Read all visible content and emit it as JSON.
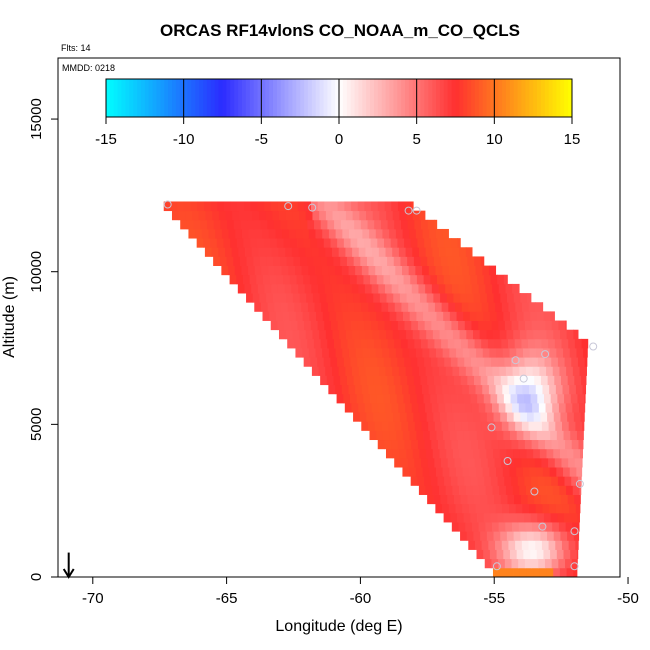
{
  "chart_data": {
    "type": "heatmap",
    "title": "ORCAS RF14vlonS CO_NOAA_m_CO_QCLS",
    "subtitle_flights": "Flts: 14",
    "subtitle_date": "MMDD: 0218",
    "xlabel": "Longitude (deg E)",
    "ylabel": "Altitude (m)",
    "xlim": [
      -71.3,
      -50.3
    ],
    "ylim": [
      0,
      17000
    ],
    "x_ticks": [
      -70,
      -65,
      -60,
      -55,
      -50
    ],
    "x_tick_labels": [
      "-70",
      "-65",
      "-60",
      "-55",
      "-50"
    ],
    "y_ticks": [
      0,
      5000,
      10000,
      15000
    ],
    "y_tick_labels": [
      "0",
      "5000",
      "10000",
      "15000"
    ],
    "colorbar": {
      "range": [
        -15,
        15
      ],
      "ticks": [
        -15,
        -10,
        -5,
        0,
        5,
        10,
        15
      ],
      "tick_labels": [
        "-15",
        "-10",
        "-5",
        "0",
        "5",
        "10",
        "15"
      ],
      "colors": [
        "#00ffff",
        "#2b2bff",
        "#ffffff",
        "#ff3030",
        "#ffff00"
      ]
    },
    "field_region": {
      "top_altitude": 12200,
      "top_lon_start": -67.4,
      "top_lon_end": -58.1,
      "right_edge_top": [
        -51.5,
        7700
      ],
      "right_edge_bottom": [
        -51.9,
        300
      ],
      "left_edge_bottom": [
        -55.2,
        300
      ],
      "description_values": "mostly 6-9 ppb (red/orange), near 0 (white) near -54 lon at 5000-7500 m and 0-2000 m"
    },
    "flight_points": [
      {
        "lon": -67.2,
        "alt": 12200
      },
      {
        "lon": -62.7,
        "alt": 12150
      },
      {
        "lon": -61.8,
        "alt": 12100
      },
      {
        "lon": -58.2,
        "alt": 12000
      },
      {
        "lon": -57.9,
        "alt": 12000
      },
      {
        "lon": -54.2,
        "alt": 7100
      },
      {
        "lon": -53.1,
        "alt": 7300
      },
      {
        "lon": -53.9,
        "alt": 6500
      },
      {
        "lon": -51.3,
        "alt": 7550
      },
      {
        "lon": -55.1,
        "alt": 4900
      },
      {
        "lon": -54.5,
        "alt": 3800
      },
      {
        "lon": -53.5,
        "alt": 2800
      },
      {
        "lon": -51.8,
        "alt": 3050
      },
      {
        "lon": -53.2,
        "alt": 1650
      },
      {
        "lon": -52.0,
        "alt": 1500
      },
      {
        "lon": -52.0,
        "alt": 350
      },
      {
        "lon": -54.9,
        "alt": 350
      }
    ],
    "arrow_marker": {
      "lon": -70.9,
      "alt_from": 800,
      "alt_to": 0
    }
  }
}
